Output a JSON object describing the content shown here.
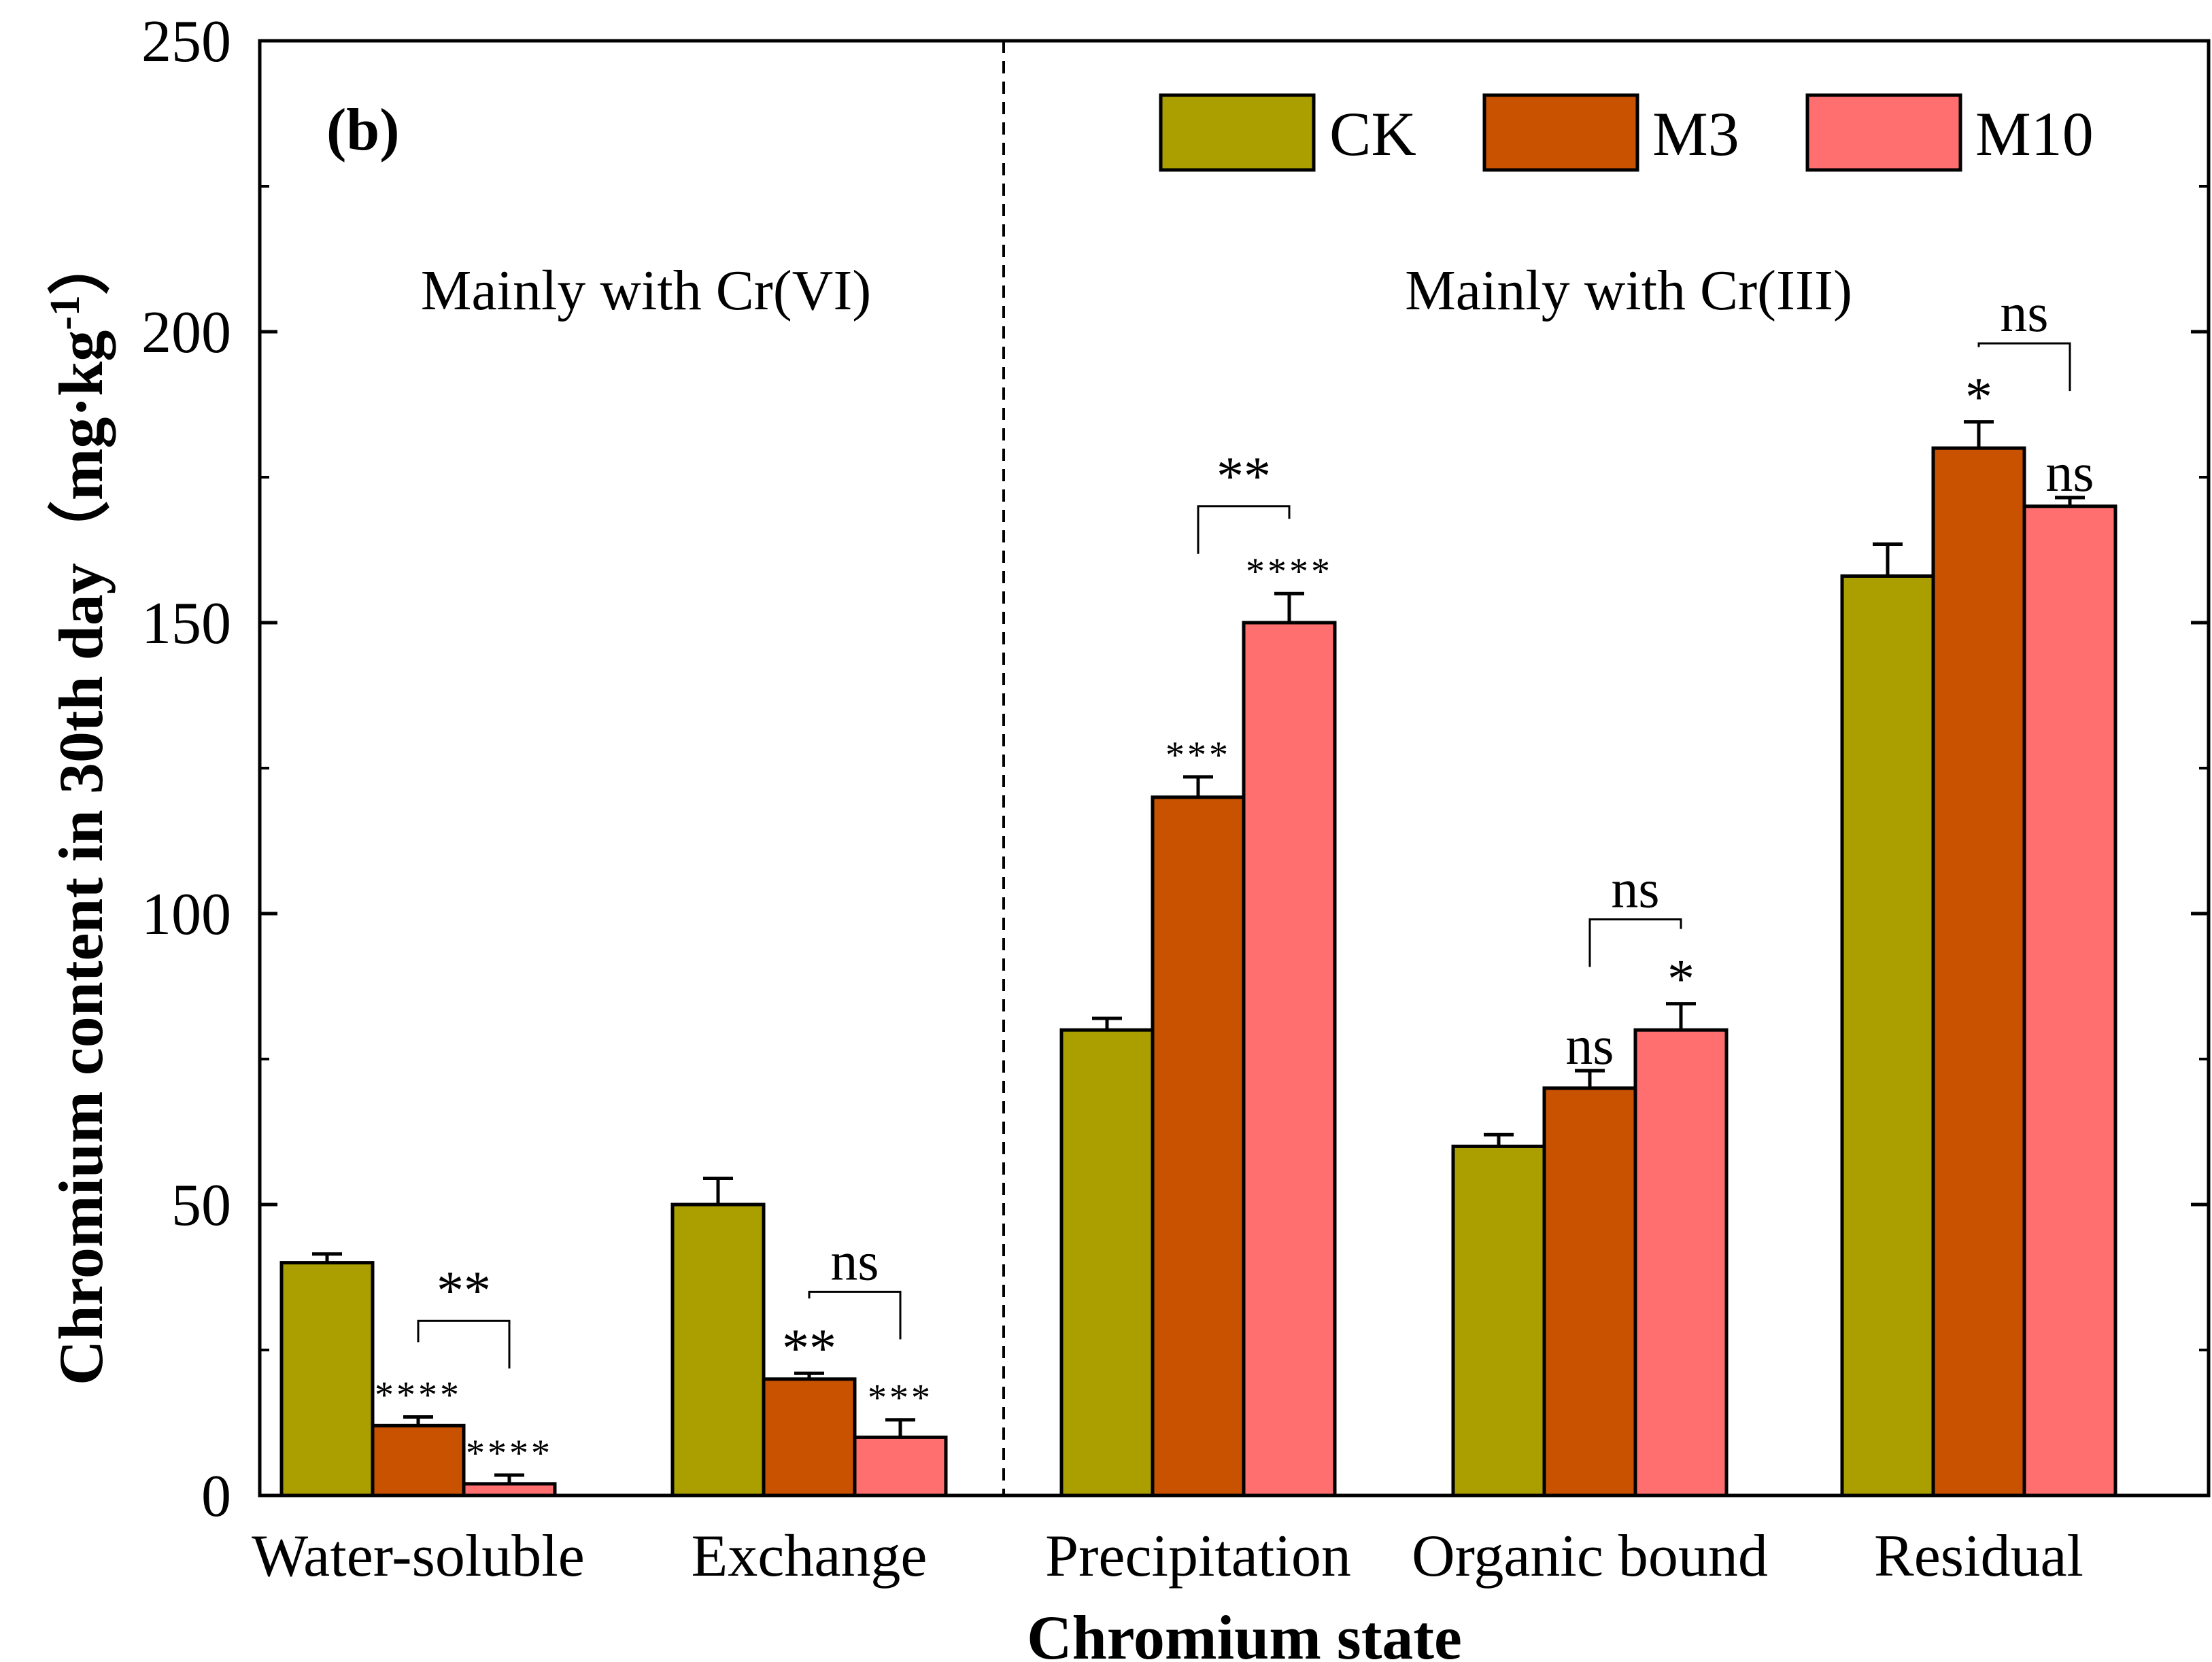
{
  "chart_data": {
    "type": "bar",
    "panel_label": "(b)",
    "xlabel": "Chromium state",
    "ylabel_main": "Chromium content in 30th day（mg·kg",
    "ylabel_sup": "-1",
    "ylabel_close": "）",
    "ylim": [
      0,
      250
    ],
    "yticks": [
      "0",
      "50",
      "100",
      "150",
      "200",
      "250"
    ],
    "categories": [
      "Water-soluble",
      "Exchange",
      "Precipitation",
      "Organic bound",
      "Residual"
    ],
    "series": [
      {
        "name": "CK",
        "color": "#ab9f00",
        "values": [
          40,
          50,
          80,
          60,
          158
        ],
        "errors": [
          1.5,
          4.5,
          2,
          2,
          5.5
        ]
      },
      {
        "name": "M3",
        "color": "#c85200",
        "values": [
          12,
          20,
          120,
          70,
          180
        ],
        "errors": [
          1.5,
          1,
          3.5,
          3,
          4.5
        ]
      },
      {
        "name": "M10",
        "color": "#ff6f70",
        "values": [
          2,
          10,
          150,
          80,
          170
        ],
        "errors": [
          1.5,
          3,
          5,
          4.5,
          1.5
        ]
      }
    ],
    "region_labels": [
      "Mainly with Cr(VI)",
      "Mainly with Cr(III)"
    ],
    "divider_after_category": 1,
    "significance": [
      {
        "cat": 0,
        "series": 1,
        "label": "****",
        "size": "small"
      },
      {
        "cat": 0,
        "series": 2,
        "label": "****",
        "size": "small"
      },
      {
        "cat": 1,
        "series": 1,
        "label": "**",
        "size": "big"
      },
      {
        "cat": 1,
        "series": 2,
        "label": "***",
        "size": "small"
      },
      {
        "cat": 2,
        "series": 1,
        "label": "***",
        "size": "small"
      },
      {
        "cat": 2,
        "series": 2,
        "label": "****",
        "size": "small"
      },
      {
        "cat": 3,
        "series": 1,
        "label": "ns",
        "size": "big"
      },
      {
        "cat": 3,
        "series": 2,
        "label": "*",
        "size": "big"
      },
      {
        "cat": 4,
        "series": 1,
        "label": "*",
        "size": "big"
      },
      {
        "cat": 4,
        "series": 2,
        "label": "ns",
        "size": "big"
      }
    ],
    "brackets": [
      {
        "cat": 0,
        "label": "**",
        "level": 30
      },
      {
        "cat": 1,
        "label": "ns",
        "level": 35
      },
      {
        "cat": 2,
        "label": "**",
        "level": 170
      },
      {
        "cat": 3,
        "label": "ns",
        "level": 99
      },
      {
        "cat": 4,
        "label": "ns",
        "level": 198
      }
    ]
  }
}
